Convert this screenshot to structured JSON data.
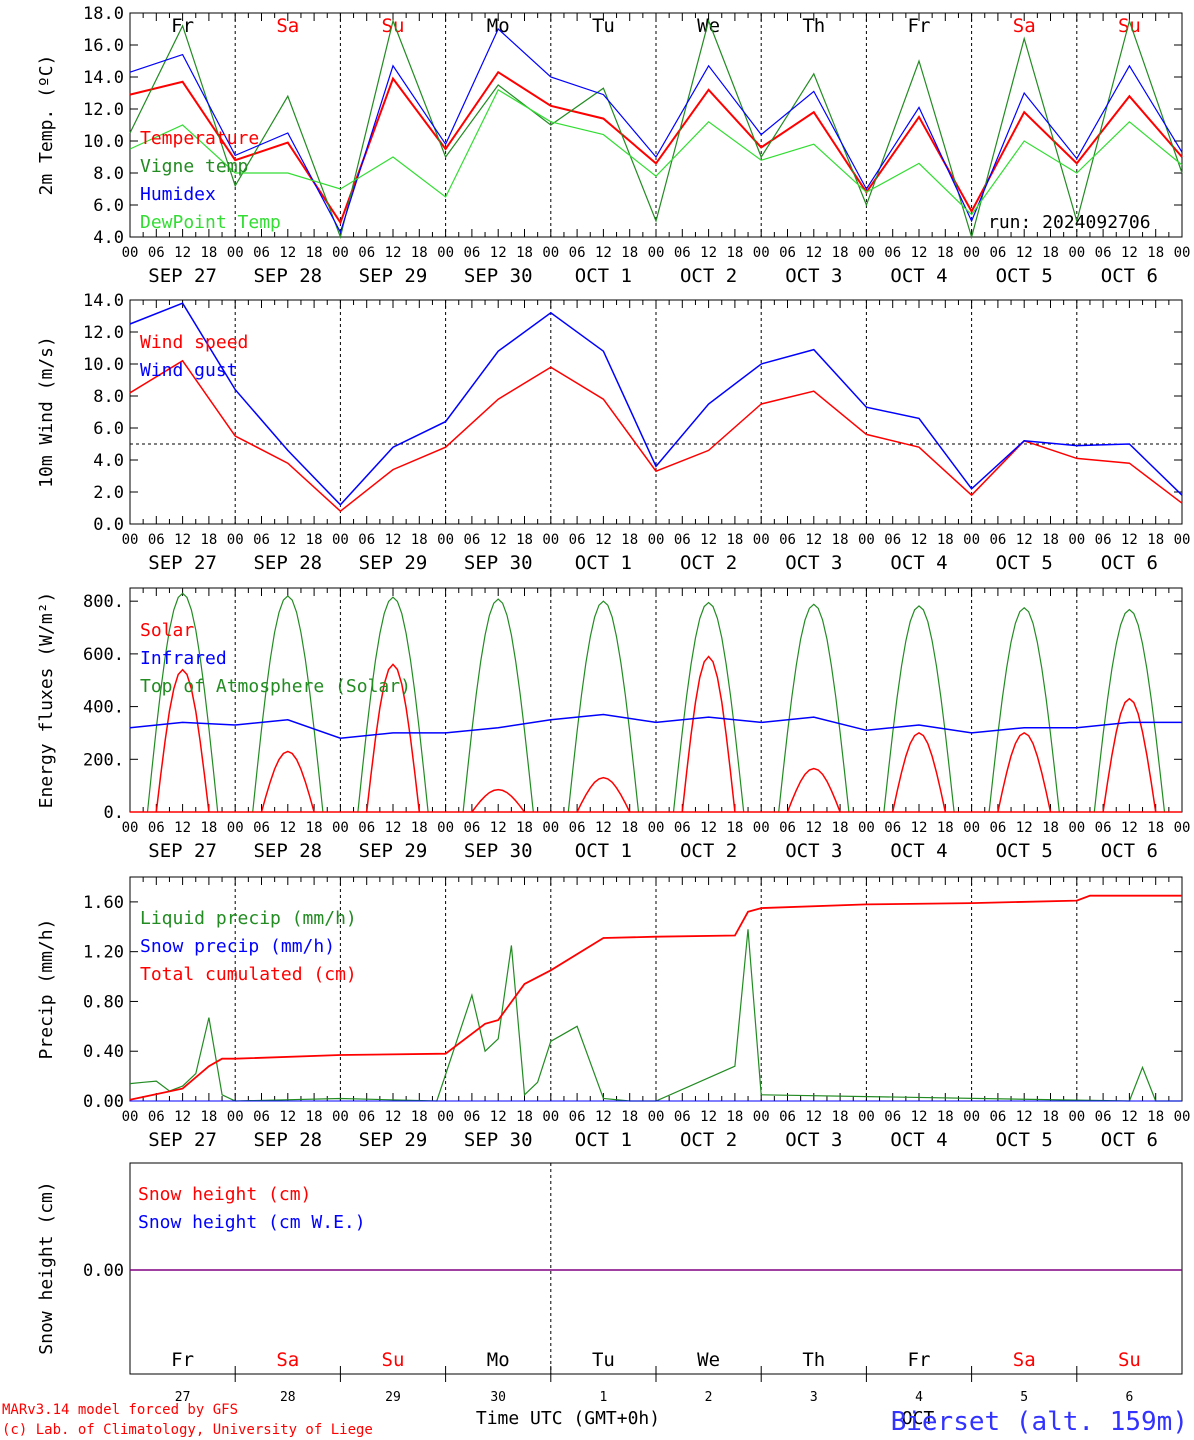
{
  "header": {
    "run": "run: 2024092706"
  },
  "footer": {
    "model": "MARv3.14 model forced by GFS",
    "copyright": "(c) Lab. of Climatology, University of Liege",
    "xlabel": "Time UTC (GMT+0h)",
    "station": "Bierset (alt. 159m)",
    "oct_label": "OCT"
  },
  "axis": {
    "hour_ticks": [
      "00",
      "06",
      "12",
      "18"
    ],
    "date_labels": [
      "SEP 27",
      "SEP 28",
      "SEP 29",
      "SEP 30",
      "OCT 1",
      "OCT 2",
      "OCT 3",
      "OCT 4",
      "OCT 5",
      "OCT 6"
    ],
    "days": [
      "Fr",
      "Sa",
      "Su",
      "Mo",
      "Tu",
      "We",
      "Th",
      "Fr",
      "Sa",
      "Su"
    ],
    "day_numbers": [
      "27",
      "28",
      "29",
      "30",
      "1",
      "2",
      "3",
      "4",
      "5",
      "6"
    ]
  },
  "colors": {
    "weekday": "#000000",
    "weekend": "#ff0000"
  },
  "chart_data": [
    {
      "type": "line",
      "ylabel": "2m Temp. (ºC)",
      "ylim": [
        4,
        18
      ],
      "yticks": [
        "4.0",
        "6.0",
        "8.0",
        "10.0",
        "12.0",
        "14.0",
        "16.0",
        "18.0"
      ],
      "xlim": [
        "2024-09-27 00:00",
        "2024-10-07 00:00"
      ],
      "x_hours": [
        0,
        12,
        24,
        36,
        48,
        60,
        72,
        84,
        96,
        108,
        120,
        132,
        144,
        156,
        168,
        180,
        192,
        204,
        216,
        228,
        240
      ],
      "series": [
        {
          "name": "Temperature",
          "color": "#ff0000",
          "values": [
            12.9,
            13.7,
            8.8,
            9.9,
            4.9,
            13.9,
            9.5,
            14.3,
            12.2,
            11.4,
            8.6,
            13.2,
            9.6,
            11.8,
            6.8,
            11.5,
            5.6,
            11.8,
            8.6,
            12.8,
            9.0
          ]
        },
        {
          "name": "Vigne temp",
          "color": "#228b22",
          "values": [
            10.5,
            17.2,
            7.2,
            12.8,
            3.5,
            17.5,
            9.0,
            13.5,
            11.0,
            13.3,
            5.0,
            17.5,
            9.0,
            14.2,
            6.0,
            15.0,
            3.0,
            16.4,
            5.0,
            17.5,
            8.0
          ]
        },
        {
          "name": "Humidex",
          "color": "#0000ff",
          "values": [
            14.3,
            15.4,
            9.1,
            10.5,
            4.3,
            14.7,
            9.8,
            17.0,
            14.0,
            12.9,
            9.0,
            14.7,
            10.4,
            13.1,
            7.0,
            12.1,
            5.0,
            13.0,
            8.9,
            14.7,
            9.3
          ]
        },
        {
          "name": "DewPoint Temp",
          "color": "#33dd33",
          "values": [
            9.5,
            11.0,
            8.0,
            8.0,
            7.0,
            9.0,
            6.5,
            13.2,
            11.2,
            10.4,
            7.8,
            11.2,
            8.8,
            9.8,
            6.8,
            8.6,
            5.4,
            10.0,
            8.0,
            11.2,
            8.5
          ]
        }
      ]
    },
    {
      "type": "line",
      "ylabel": "10m Wind (m/s)",
      "ylim": [
        0,
        14
      ],
      "yticks": [
        "0.0",
        "2.0",
        "4.0",
        "6.0",
        "8.0",
        "10.0",
        "12.0",
        "14.0"
      ],
      "reference_line": 5.0,
      "x_hours": [
        0,
        12,
        24,
        36,
        48,
        60,
        72,
        84,
        96,
        108,
        120,
        132,
        144,
        156,
        168,
        180,
        192,
        204,
        216,
        228,
        240
      ],
      "series": [
        {
          "name": "Wind speed",
          "color": "#ff0000",
          "values": [
            8.2,
            10.2,
            5.5,
            3.8,
            0.8,
            3.4,
            4.8,
            7.8,
            9.8,
            7.8,
            3.3,
            4.6,
            7.5,
            8.3,
            5.6,
            4.8,
            1.8,
            5.2,
            4.1,
            3.8,
            1.3
          ]
        },
        {
          "name": "Wind gust",
          "color": "#0000ff",
          "values": [
            12.5,
            13.8,
            8.4,
            4.6,
            1.2,
            4.8,
            6.4,
            10.8,
            13.2,
            10.8,
            3.6,
            7.5,
            10.0,
            10.9,
            7.3,
            6.6,
            2.2,
            5.2,
            4.9,
            5.0,
            1.8
          ]
        }
      ]
    },
    {
      "type": "line",
      "ylabel": "Energy fluxes (W/m²)",
      "ylim": [
        0,
        850
      ],
      "yticks": [
        "0.",
        "200.",
        "400.",
        "600.",
        "800."
      ],
      "peaks_hours": [
        12,
        36,
        60,
        84,
        108,
        132,
        156,
        180,
        204,
        228
      ],
      "series": [
        {
          "name": "Solar",
          "color": "#ff0000",
          "peak_values": [
            540,
            230,
            560,
            85,
            130,
            590,
            165,
            300,
            300,
            430
          ]
        },
        {
          "name": "Infrared",
          "color": "#0000ff",
          "typical_values": [
            320,
            330,
            280,
            300,
            350,
            340,
            340,
            310,
            300,
            320
          ]
        },
        {
          "name": "Top of Atmosphere (Solar)",
          "color": "#228b22",
          "peak_values": [
            830,
            820,
            815,
            808,
            800,
            795,
            788,
            782,
            775,
            768
          ]
        }
      ]
    },
    {
      "type": "line",
      "ylabel": "Precip (mm/h)",
      "ylim": [
        0,
        1.8
      ],
      "yticks": [
        "0.00",
        "0.40",
        "0.80",
        "1.20",
        "1.60"
      ],
      "series": [
        {
          "name": "Liquid precip (mm/h)",
          "color": "#228b22",
          "x_hours": [
            0,
            3,
            6,
            9,
            12,
            15,
            18,
            21,
            24,
            48,
            70,
            78,
            81,
            84,
            87,
            90,
            93,
            96,
            102,
            108,
            114,
            120,
            138,
            141,
            144,
            228,
            231,
            234,
            240
          ],
          "values": [
            0.14,
            0.15,
            0.16,
            0.08,
            0.12,
            0.22,
            0.67,
            0.05,
            0.0,
            0.02,
            0.0,
            0.85,
            0.4,
            0.5,
            1.25,
            0.05,
            0.15,
            0.48,
            0.6,
            0.02,
            0.0,
            0.0,
            0.28,
            1.38,
            0.05,
            0.0,
            0.27,
            0.0,
            0.0
          ]
        },
        {
          "name": "Snow precip (mm/h)",
          "color": "#0000ff",
          "values": [
            0.0
          ]
        },
        {
          "name": "Total cumulated (cm)",
          "color": "#ff0000",
          "x_hours": [
            0,
            12,
            18,
            21,
            24,
            48,
            72,
            81,
            84,
            90,
            96,
            108,
            120,
            138,
            141,
            144,
            168,
            192,
            216,
            219,
            240
          ],
          "values": [
            0.01,
            0.1,
            0.28,
            0.34,
            0.34,
            0.37,
            0.38,
            0.62,
            0.65,
            0.94,
            1.05,
            1.31,
            1.32,
            1.33,
            1.52,
            1.55,
            1.58,
            1.59,
            1.61,
            1.65,
            1.65
          ]
        }
      ]
    },
    {
      "type": "line",
      "ylabel": "Snow height (cm)",
      "yticks": [
        "0.00"
      ],
      "series": [
        {
          "name": "Snow height (cm)",
          "color": "#ff0000",
          "values": [
            0.0,
            0.0
          ]
        },
        {
          "name": "Snow height (cm W.E.)",
          "color": "#0000ff",
          "values": [
            0.0,
            0.0
          ]
        }
      ]
    }
  ]
}
